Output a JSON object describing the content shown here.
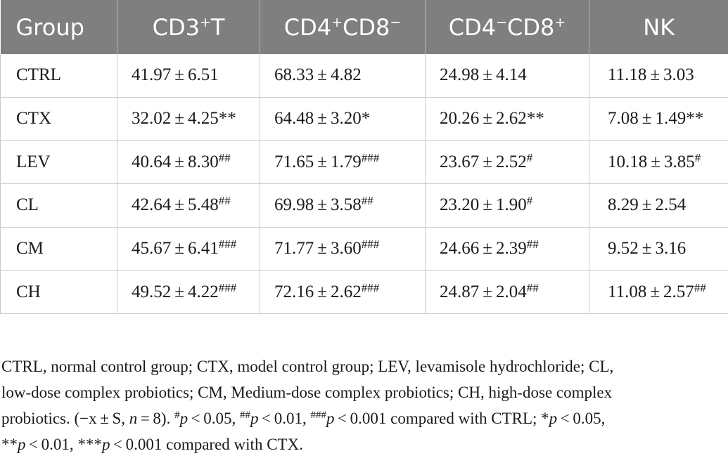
{
  "table": {
    "headers": [
      {
        "main": "Group",
        "sup": ""
      },
      {
        "main": "CD3",
        "sup": "+",
        "tail": "T"
      },
      {
        "parts": [
          "CD4",
          "+",
          "CD8",
          "−"
        ]
      },
      {
        "parts": [
          "CD4",
          "−",
          "CD8",
          "+"
        ]
      },
      {
        "main": "NK",
        "sup": ""
      }
    ],
    "rows": [
      {
        "group": "CTRL",
        "cells": [
          {
            "v": "41.97 ± 6.51",
            "m": ""
          },
          {
            "v": "68.33 ± 4.82",
            "m": ""
          },
          {
            "v": "24.98 ± 4.14",
            "m": ""
          },
          {
            "v": "11.18 ± 3.03",
            "m": ""
          }
        ]
      },
      {
        "group": "CTX",
        "cells": [
          {
            "v": "32.02 ± 4.25**",
            "m": ""
          },
          {
            "v": "64.48 ± 3.20*",
            "m": ""
          },
          {
            "v": "20.26 ± 2.62**",
            "m": ""
          },
          {
            "v": "7.08 ± 1.49**",
            "m": ""
          }
        ]
      },
      {
        "group": "LEV",
        "cells": [
          {
            "v": "40.64 ± 8.30",
            "m": "##"
          },
          {
            "v": "71.65 ± 1.79",
            "m": "###"
          },
          {
            "v": "23.67 ± 2.52",
            "m": "#"
          },
          {
            "v": "10.18 ± 3.85",
            "m": "#"
          }
        ]
      },
      {
        "group": "CL",
        "cells": [
          {
            "v": "42.64 ± 5.48",
            "m": "##"
          },
          {
            "v": "69.98 ± 3.58",
            "m": "##"
          },
          {
            "v": "23.20 ± 1.90",
            "m": "#"
          },
          {
            "v": "8.29 ± 2.54",
            "m": ""
          }
        ]
      },
      {
        "group": "CM",
        "cells": [
          {
            "v": "45.67 ± 6.41",
            "m": "###"
          },
          {
            "v": "71.77 ± 3.60",
            "m": "###"
          },
          {
            "v": "24.66 ± 2.39",
            "m": "##"
          },
          {
            "v": "9.52 ± 3.16",
            "m": ""
          }
        ]
      },
      {
        "group": "CH",
        "cells": [
          {
            "v": "49.52 ± 4.22",
            "m": "###"
          },
          {
            "v": "72.16 ± 2.62",
            "m": "###"
          },
          {
            "v": "24.87 ± 2.04",
            "m": "##"
          },
          {
            "v": "11.08 ± 2.57",
            "m": "##"
          }
        ]
      }
    ]
  },
  "footnote": {
    "line1": "CTRL, normal control group; CTX, model control group; LEV, levamisole hydrochloride; CL,",
    "line2": "low-dose complex probiotics; CM, Medium-dose complex probiotics; CH, high-dose complex",
    "line3_a": "probiotics. (−x ± S, ",
    "line3_n": "n",
    "line3_b": " = 8). ",
    "p": "p",
    "lt05": " < 0.05, ",
    "lt01": " < 0.01, ",
    "lt001": " < 0.001",
    "vs_ctrl": " compared with CTRL; ",
    "vs_ctx": " compared with CTX.",
    "m1": "#",
    "m2": "##",
    "m3": "###",
    "s1": "*",
    "s2": "**",
    "s3": "***"
  }
}
